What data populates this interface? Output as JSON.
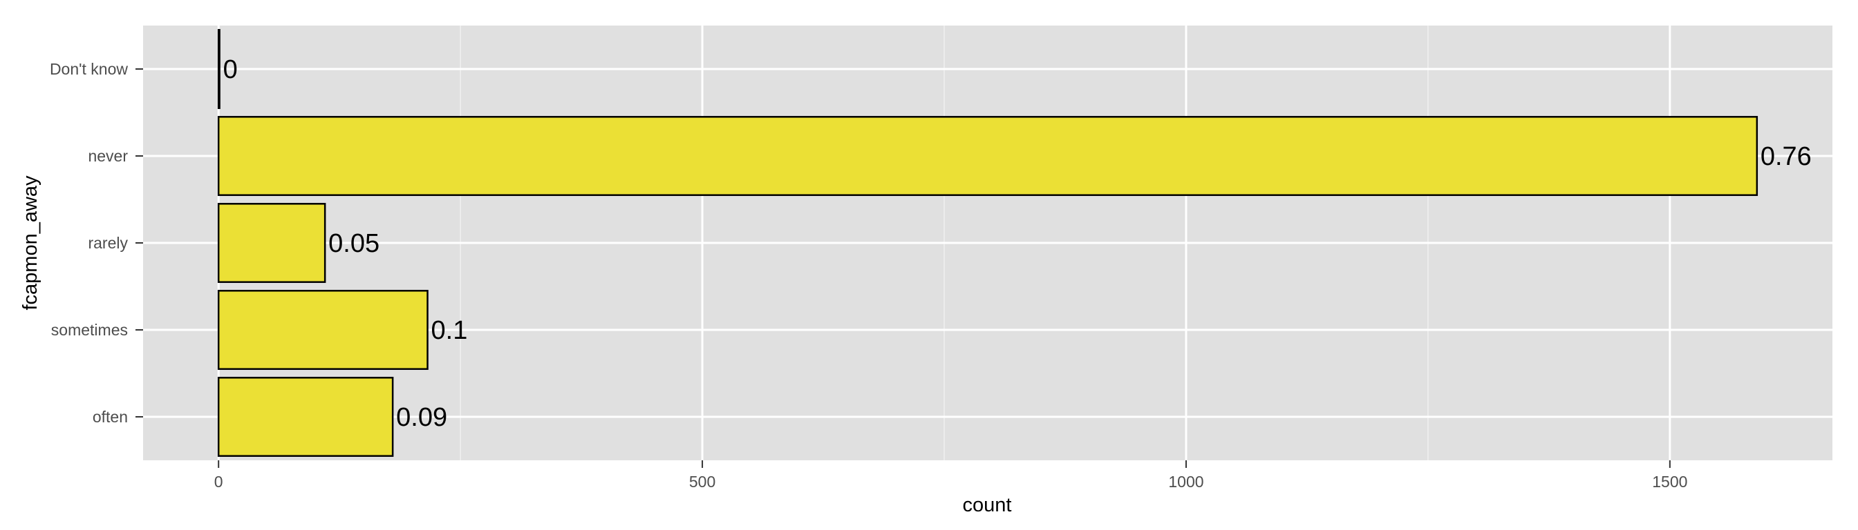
{
  "chart_data": {
    "type": "bar",
    "orientation": "horizontal",
    "categories": [
      "Don't know",
      "never",
      "rarely",
      "sometimes",
      "often"
    ],
    "values": [
      1,
      1590,
      110,
      216,
      180
    ],
    "data_labels": [
      "0",
      "0.76",
      "0.05",
      "0.1",
      "0.09"
    ],
    "xlabel": "count",
    "ylabel": "fcapmon_away",
    "xlim": [
      -78,
      1668
    ],
    "xticks": [
      0,
      500,
      1000,
      1500
    ],
    "xtick_labels": [
      "0",
      "500",
      "1000",
      "1500"
    ],
    "grid": true,
    "colors": {
      "bar_fill": "#ebe035",
      "bar_stroke": "#000000",
      "panel_background": "#e0e0e0",
      "grid": "#ffffff"
    }
  }
}
